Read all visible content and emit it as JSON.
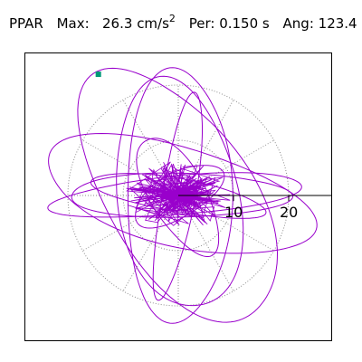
{
  "header": {
    "component": "PPAR",
    "max_label": "Max:",
    "max_value": "26.3",
    "max_unit": "cm/s",
    "max_unit_exp": "2",
    "per_label": "Per:",
    "per_value": "0.150",
    "per_unit": "s",
    "ang_label": "Ang:",
    "ang_value": "123.4"
  },
  "chart_data": {
    "type": "polar-orbit",
    "component": "PPAR",
    "max_acceleration_cm_s2": 26.3,
    "period_s": 0.15,
    "angle_deg": 123.4,
    "radial_ticks": [
      "10",
      "20"
    ],
    "radial_tick_values": [
      10,
      20
    ],
    "grid": "dotted circles and radial spokes",
    "colors": {
      "trace": "#9900cc",
      "grid": "#8c8c8c",
      "axis": "#000000",
      "peak_marker": "#009977"
    },
    "orbits": [
      {
        "a": 23.0,
        "b": 9.5,
        "theta_deg": 90
      },
      {
        "a": 26.0,
        "b": 13.0,
        "theta_deg": 123.4
      },
      {
        "a": 20.0,
        "b": 4.0,
        "theta_deg": 0
      },
      {
        "a": 16.0,
        "b": 3.0,
        "theta_deg": -10
      },
      {
        "a": 23.0,
        "b": 3.5,
        "theta_deg": 5
      },
      {
        "a": 21.0,
        "b": 11.0,
        "theta_deg": -80
      },
      {
        "a": 19.0,
        "b": 3.0,
        "theta_deg": 80
      },
      {
        "a": 25.0,
        "b": 9.0,
        "theta_deg": -15
      },
      {
        "a": 12.0,
        "b": 5.0,
        "theta_deg": -60
      },
      {
        "a": 9.0,
        "b": 4.0,
        "theta_deg": 30
      }
    ]
  }
}
